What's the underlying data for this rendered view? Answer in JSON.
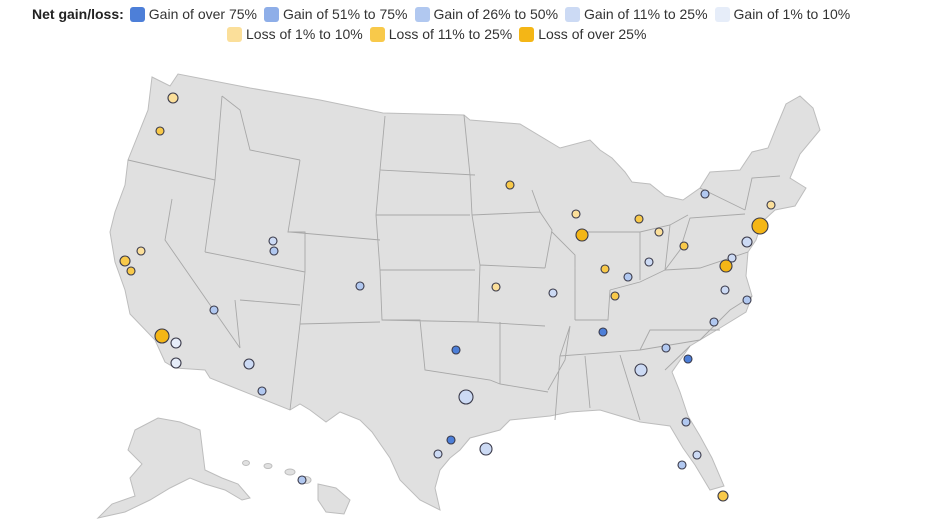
{
  "legend": {
    "title": "Net gain/loss:",
    "items": [
      {
        "label": "Gain of over 75%",
        "color": "#4d7fd8"
      },
      {
        "label": "Gain of 51% to 75%",
        "color": "#8eaee8"
      },
      {
        "label": "Gain of 26% to 50%",
        "color": "#b1c8f0"
      },
      {
        "label": "Gain of 11% to 25%",
        "color": "#ccdaf4"
      },
      {
        "label": "Gain of 1% to 10%",
        "color": "#e6edf9"
      },
      {
        "label": "Loss of 1% to 10%",
        "color": "#fbdf9a"
      },
      {
        "label": "Loss of 11% to 25%",
        "color": "#f8c94a"
      },
      {
        "label": "Loss of over 25%",
        "color": "#f4b616"
      }
    ]
  },
  "map": {
    "land_color": "#e0e0e0",
    "border_color": "#a8a8a8"
  }
}
